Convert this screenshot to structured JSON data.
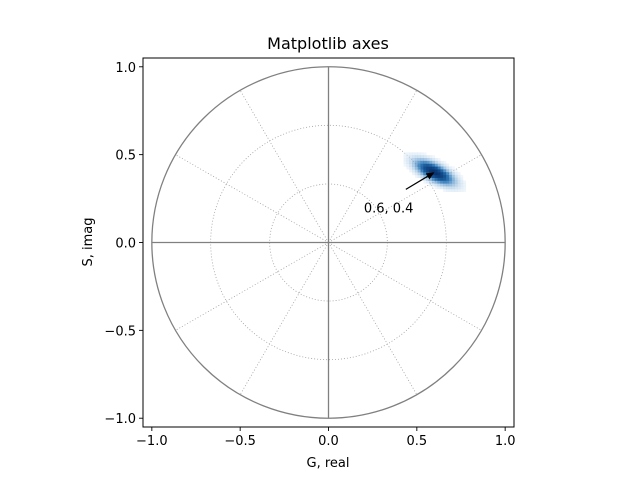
{
  "chart_data": {
    "type": "heatmap",
    "title": "Matplotlib axes",
    "xlabel": "G, real",
    "ylabel": "S, imag",
    "xlim": [
      -1.05,
      1.05
    ],
    "ylim": [
      -1.05,
      1.05
    ],
    "xticks": [
      -1.0,
      -0.5,
      0.0,
      0.5,
      1.0
    ],
    "yticks": [
      -1.0,
      -0.5,
      0.0,
      0.5,
      1.0
    ],
    "xtick_labels": [
      "−1.0",
      "−0.5",
      "0.0",
      "0.5",
      "1.0"
    ],
    "ytick_labels": [
      "−1.0",
      "−0.5",
      "0.0",
      "0.5",
      "1.0"
    ],
    "unit_circle_radius": 1.0,
    "grid": {
      "radii": [
        0.333,
        0.667
      ],
      "angles_deg": [
        30,
        60,
        90,
        120,
        150,
        180,
        210,
        240,
        270,
        300,
        330
      ],
      "style": "dotted"
    },
    "density": {
      "center": [
        0.6,
        0.4
      ],
      "major_sigma": 0.085,
      "minor_sigma": 0.033,
      "angle_deg": -28,
      "bin_size": 0.016,
      "colormap": "Blues"
    },
    "annotation": {
      "text": "0.6, 0.4",
      "point": [
        0.6,
        0.4
      ],
      "text_at": [
        0.2,
        0.2
      ]
    },
    "colors": {
      "circle": "#808080",
      "axes": "#808080",
      "grid": "#a0a0a0",
      "density_low": "#deebf7",
      "density_high": "#08306b"
    }
  }
}
